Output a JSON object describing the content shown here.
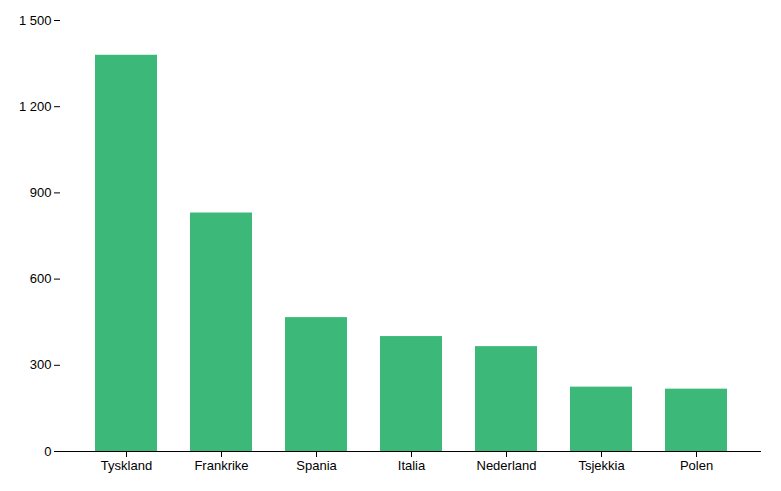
{
  "chart_data": {
    "type": "bar",
    "categories": [
      "Tyskland",
      "Frankrike",
      "Spania",
      "Italia",
      "Nederland",
      "Tsjekkia",
      "Polen"
    ],
    "values": [
      1379,
      830,
      466,
      400,
      365,
      224,
      217
    ],
    "color": "#3cb878",
    "ylim": [
      0,
      1500
    ],
    "yticks": [
      0,
      300,
      600,
      900,
      {
        "value": 1200,
        "label": "1 200"
      },
      {
        "value": 1500,
        "label": "1 500"
      }
    ],
    "grid": false
  }
}
